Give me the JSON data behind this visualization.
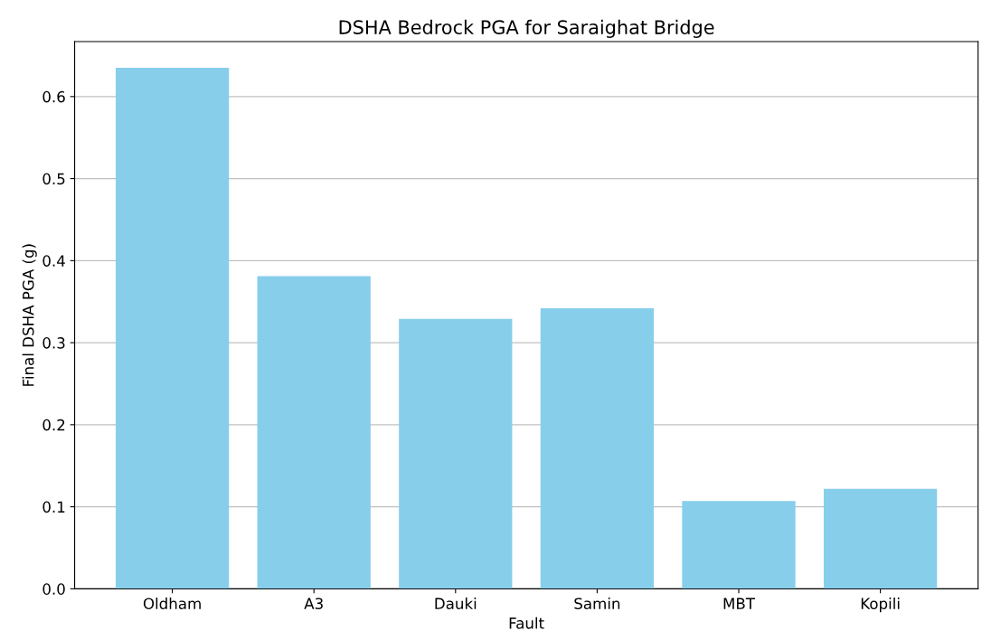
{
  "chart_data": {
    "type": "bar",
    "title": "DSHA Bedrock PGA for Saraighat Bridge",
    "xlabel": "Fault",
    "ylabel": "Final DSHA PGA (g)",
    "categories": [
      "Oldham",
      "A3",
      "Dauki",
      "Samin",
      "MBT",
      "Kopili"
    ],
    "values": [
      0.635,
      0.381,
      0.329,
      0.342,
      0.107,
      0.122
    ],
    "color": "#87ceeb",
    "ylim": [
      0,
      0.667
    ],
    "yticks": [
      {
        "value": 0,
        "label": "0.0"
      },
      0.1,
      0.2,
      0.3,
      0.4,
      0.5,
      0.6
    ],
    "grid": "y"
  }
}
